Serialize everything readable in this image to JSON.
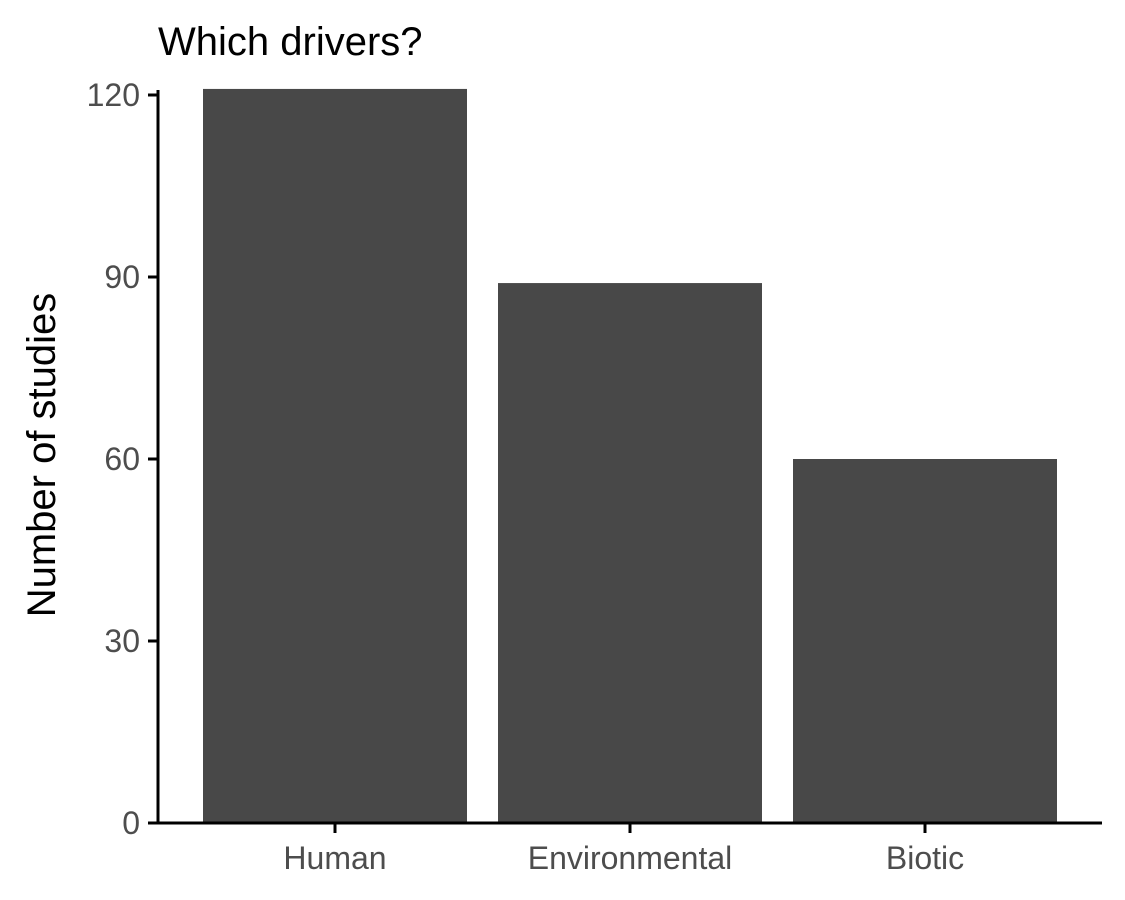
{
  "chart_data": {
    "type": "bar",
    "title": "Which drivers?",
    "xlabel": "",
    "ylabel": "Number of studies",
    "categories": [
      "Human",
      "Environmental",
      "Biotic"
    ],
    "values": [
      121,
      89,
      60
    ],
    "ylim": [
      0,
      120
    ],
    "yticks": [
      "0",
      "30",
      "60",
      "90",
      "120"
    ],
    "grid": false,
    "legend": "none",
    "bar_color": "#484848"
  }
}
